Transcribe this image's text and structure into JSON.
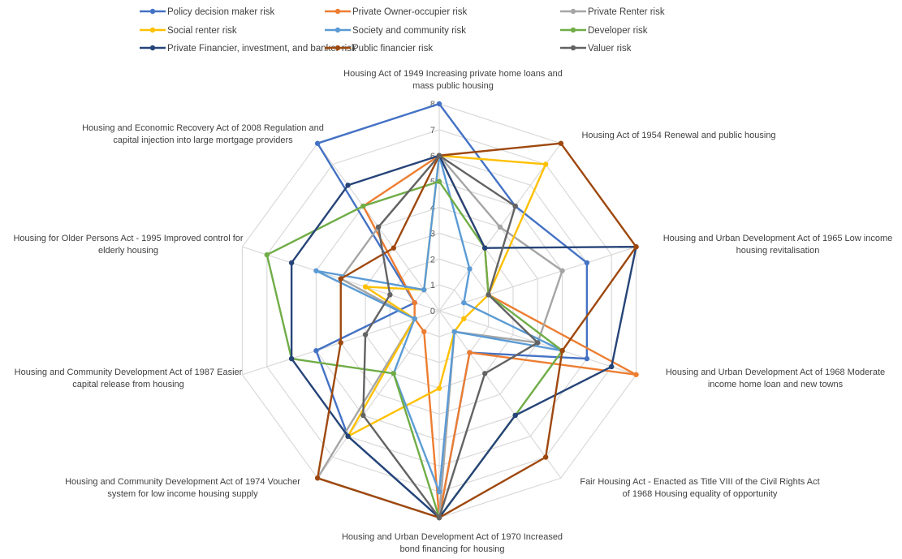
{
  "chart_data": {
    "type": "radar",
    "title": "",
    "r_range": [
      0,
      8
    ],
    "r_ticks": [
      0,
      1,
      2,
      3,
      4,
      5,
      6,
      7,
      8
    ],
    "grid": true,
    "legend_position": "top",
    "categories": [
      [
        "Housing Act of 1949  Increasing private home loans and",
        "mass public housing"
      ],
      [
        "Housing Act of 1954 Renewal and public housing"
      ],
      [
        "Housing and Urban Development Act of 1965 Low income",
        "housing revitalisation"
      ],
      [
        "Housing and Urban Development Act of 1968 Moderate",
        "income home loan and new towns"
      ],
      [
        "Fair Housing Act - Enacted as Title VIII of the Civil Rights Act",
        "of 1968 Housing equality of opportunity"
      ],
      [
        "Housing and Urban Development Act of 1970 Increased",
        "bond financing for housing"
      ],
      [
        "Housing and Community Development Act of 1974 Voucher",
        "system for low income housing supply"
      ],
      [
        "Housing and Community Development Act of 1987 Easier",
        "capital release from housing"
      ],
      [
        "Housing for Older Persons Act - 1995 Improved control for",
        "elderly housing"
      ],
      [
        "Housing and Economic Recovery Act of 2008 Regulation and",
        "capital injection into large mortgage providers"
      ]
    ],
    "series": [
      {
        "name": "Policy decision maker risk",
        "color": "#4472C4",
        "values": [
          8,
          5,
          6,
          6,
          2,
          8,
          6,
          5,
          1,
          8
        ]
      },
      {
        "name": "Private Owner-occupier risk",
        "color": "#ED7D31",
        "values": [
          6,
          3,
          2,
          8,
          2,
          8,
          1,
          1,
          1,
          5
        ]
      },
      {
        "name": "Private Renter risk",
        "color": "#A5A5A5",
        "values": [
          6,
          4,
          5,
          4,
          1,
          8,
          8,
          1,
          4,
          4
        ]
      },
      {
        "name": "Social renter risk",
        "color": "#FFC000",
        "values": [
          6,
          7,
          2,
          1,
          1,
          3,
          6,
          1,
          3,
          1
        ]
      },
      {
        "name": "Society and community risk",
        "color": "#5B9BD5",
        "values": [
          6,
          2,
          1,
          5,
          1,
          7,
          3,
          1,
          5,
          1
        ]
      },
      {
        "name": "Developer risk",
        "color": "#70AD47",
        "values": [
          5,
          3,
          2,
          5,
          5,
          8,
          3,
          6,
          7,
          5
        ]
      },
      {
        "name": "Private Financier, investment, and banker risk",
        "color": "#264478",
        "values": [
          6,
          3,
          8,
          7,
          5,
          8,
          6,
          6,
          6,
          6
        ]
      },
      {
        "name": "Public financier risk",
        "color": "#9E480E",
        "values": [
          6,
          8,
          8,
          5,
          7,
          8,
          8,
          4,
          4,
          3
        ]
      },
      {
        "name": "Valuer risk",
        "color": "#636363",
        "values": [
          6,
          5,
          2,
          4,
          3,
          8,
          5,
          3,
          2,
          4
        ]
      }
    ]
  }
}
